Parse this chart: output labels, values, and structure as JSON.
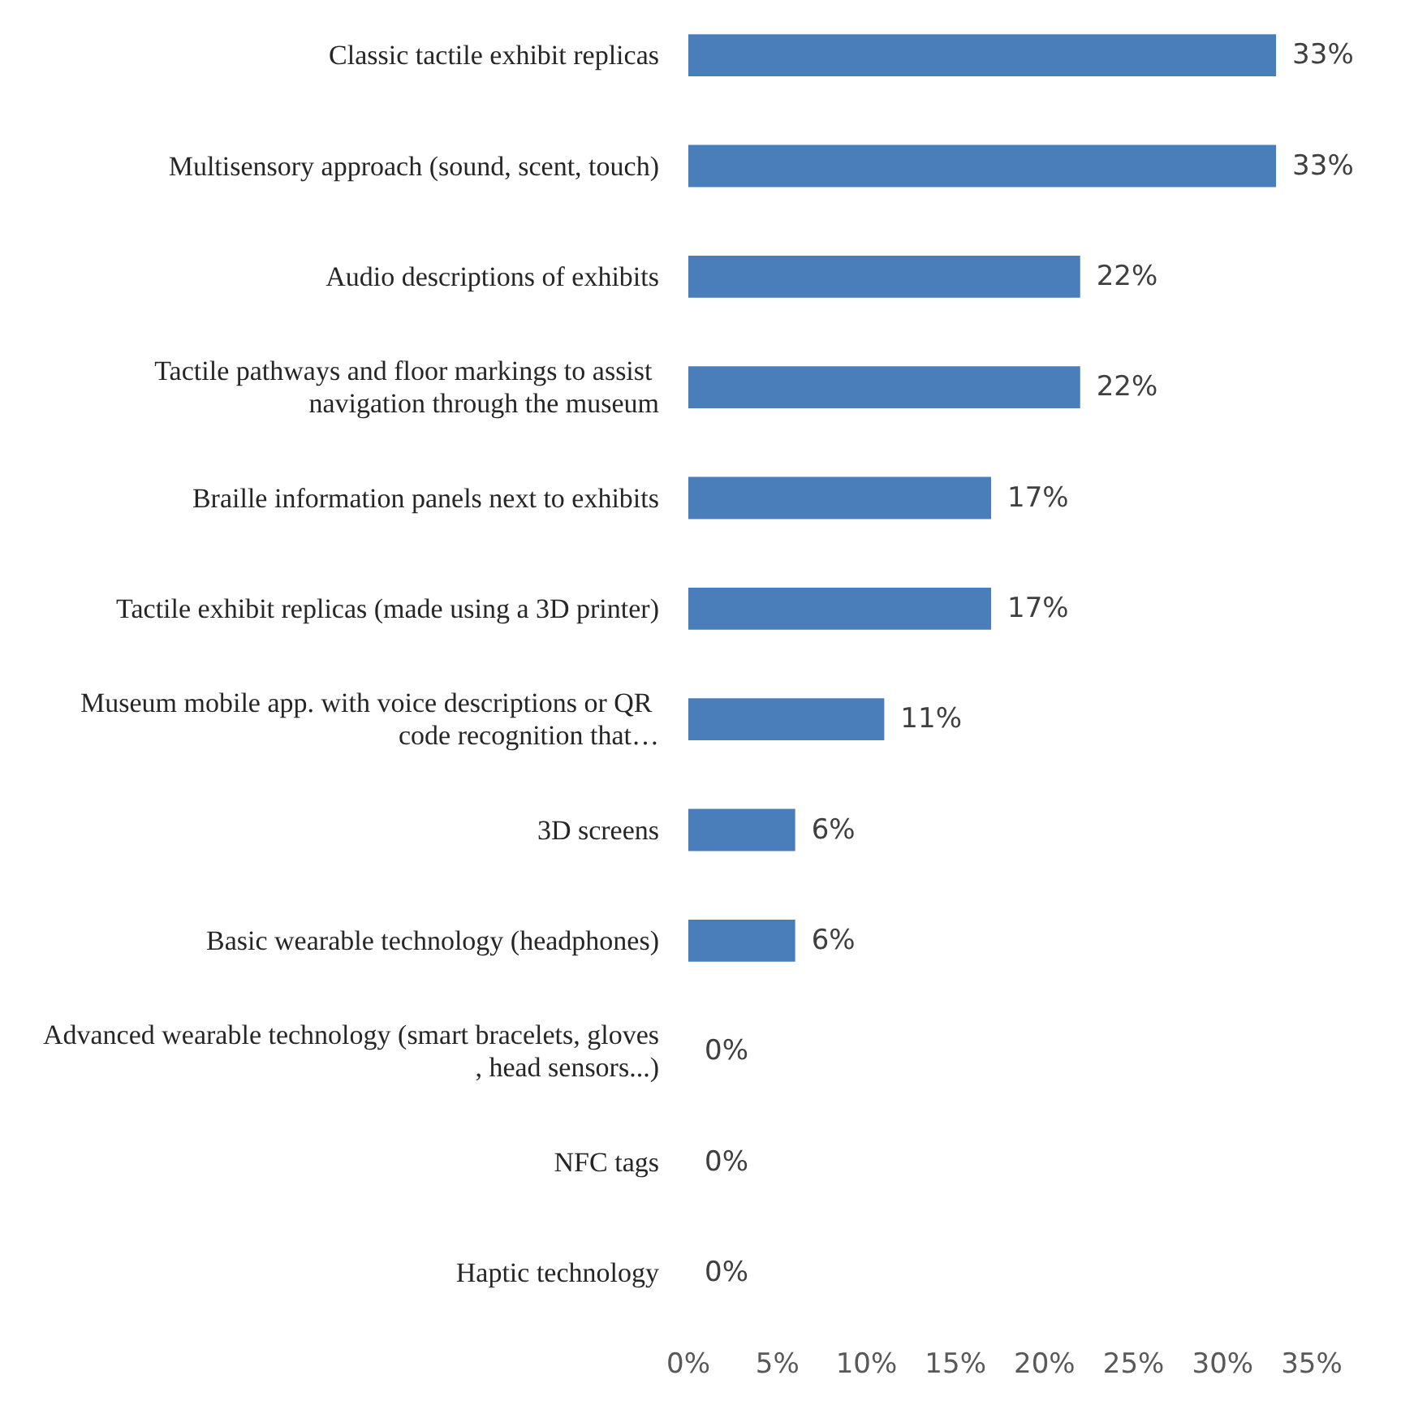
{
  "chart_data": {
    "type": "bar",
    "orientation": "horizontal",
    "categories": [
      "Classic tactile exhibit replicas",
      "Multisensory approach (sound, scent, touch)",
      "Audio descriptions of exhibits",
      "Tactile pathways and floor markings to assist navigation through the museum",
      "Braille information panels next to exhibits",
      "Tactile exhibit replicas (made using a 3D printer)",
      "Museum mobile app. with voice descriptions or QR code recognition that…",
      "3D screens",
      "Basic wearable technology (headphones)",
      "Advanced wearable technology (smart bracelets, gloves, head sensors...)",
      "NFC tags",
      "Haptic technology"
    ],
    "values": [
      33,
      33,
      22,
      22,
      17,
      17,
      11,
      6,
      6,
      0,
      0,
      0
    ],
    "value_labels": [
      "33%",
      "33%",
      "22%",
      "22%",
      "17%",
      "17%",
      "11%",
      "6%",
      "6%",
      "0%",
      "0%",
      "0%"
    ],
    "color": "#4a7ebb",
    "xlim": [
      0,
      35
    ],
    "xticks": [
      {
        "value": 0,
        "label": "0%"
      },
      {
        "value": 5,
        "label": "5%"
      },
      {
        "value": 10,
        "label": "10%"
      },
      {
        "value": 15,
        "label": "15%"
      },
      {
        "value": 20,
        "label": "20%"
      },
      {
        "value": 25,
        "label": "25%"
      },
      {
        "value": 30,
        "label": "30%"
      },
      {
        "value": 35,
        "label": "35%"
      }
    ],
    "grid": false
  }
}
